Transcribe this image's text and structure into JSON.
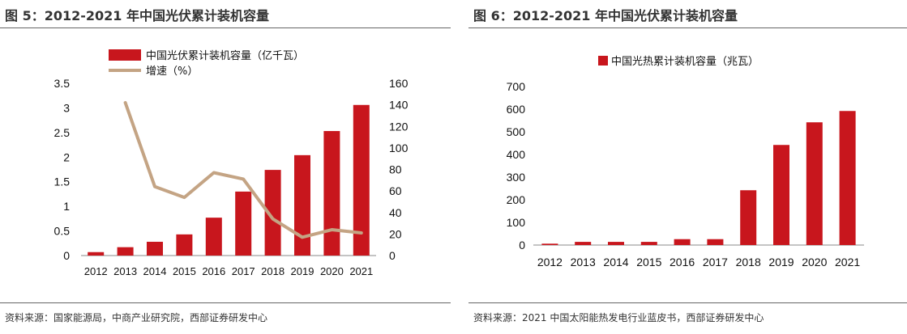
{
  "figures": [
    {
      "title": "图 5：2012-2021 年中国光伏累计装机容量",
      "source": "资料来源：国家能源局，中商产业研究院，西部证券研发中心"
    },
    {
      "title": "图 6：2012-2021 年中国光伏累计装机容量",
      "source": "资料来源：2021 中国太阳能热发电行业蓝皮书，西部证券研发中心"
    }
  ],
  "colors": {
    "bar": "#c8161d",
    "line": "#c4a484",
    "rule": "#666666"
  },
  "chart_data": [
    {
      "type": "bar",
      "categories": [
        "2012",
        "2013",
        "2014",
        "2015",
        "2016",
        "2017",
        "2018",
        "2019",
        "2020",
        "2021"
      ],
      "series": [
        {
          "name": "中国光伏累计装机容量（亿千瓦）",
          "type": "bar",
          "axis": "left",
          "values": [
            0.07,
            0.17,
            0.28,
            0.43,
            0.77,
            1.3,
            1.74,
            2.04,
            2.53,
            3.06
          ]
        },
        {
          "name": "增速（%）",
          "type": "line",
          "axis": "right",
          "values": [
            null,
            142,
            64,
            54,
            77,
            71,
            34,
            17,
            24,
            21
          ]
        }
      ],
      "ylim": [
        0,
        3.5
      ],
      "yticks": [
        "0",
        "0.5",
        "1",
        "1.5",
        "2",
        "2.5",
        "3",
        "3.5"
      ],
      "y2lim": [
        0,
        160
      ],
      "y2ticks": [
        "0",
        "20",
        "40",
        "60",
        "80",
        "100",
        "120",
        "140",
        "160"
      ],
      "legend": "top",
      "grid": false
    },
    {
      "type": "bar",
      "categories": [
        "2012",
        "2013",
        "2014",
        "2015",
        "2016",
        "2017",
        "2018",
        "2019",
        "2020",
        "2021"
      ],
      "series": [
        {
          "name": "中国光热累计装机容量（兆瓦）",
          "type": "bar",
          "values": [
            6,
            14,
            14,
            14,
            26,
            26,
            242,
            442,
            542,
            592
          ]
        }
      ],
      "ylim": [
        0,
        700
      ],
      "yticks": [
        "0",
        "100",
        "200",
        "300",
        "400",
        "500",
        "600",
        "700"
      ],
      "legend": "top",
      "grid": false
    }
  ]
}
